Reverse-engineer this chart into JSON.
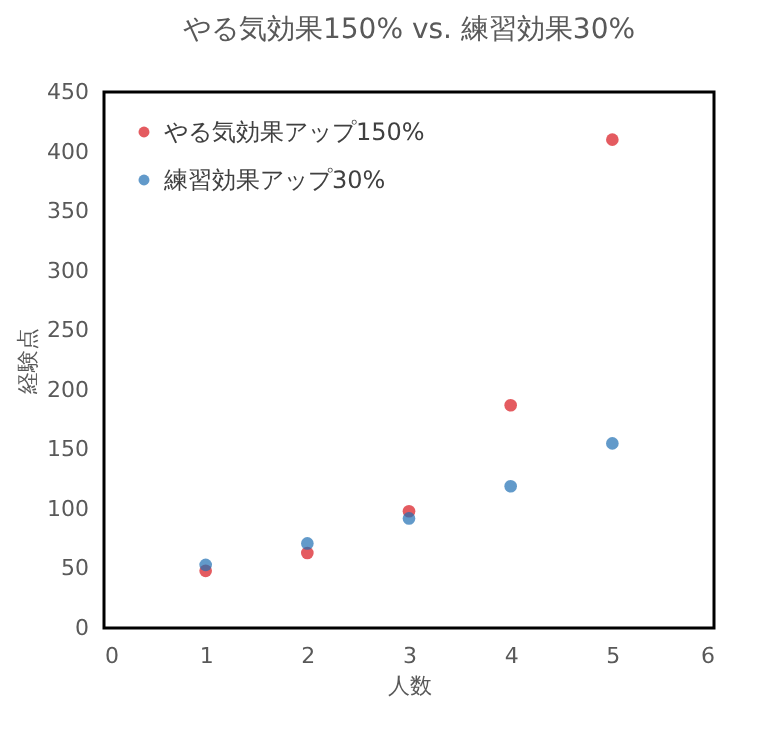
{
  "chart_data": {
    "type": "scatter",
    "title": "やる気効果150% vs. 練習効果30%",
    "xlabel": "人数",
    "ylabel": "経験点",
    "x": [
      1,
      2,
      3,
      4,
      5
    ],
    "series": [
      {
        "name": "やる気効果アップ150%",
        "color": "#d9161c",
        "values": [
          48,
          63,
          98,
          187,
          410
        ]
      },
      {
        "name": "練習効果アップ30%",
        "color": "#1f6fb4",
        "values": [
          53,
          71,
          92,
          119,
          155
        ]
      }
    ],
    "xlim": [
      0,
      6
    ],
    "xticks": [
      0,
      1,
      2,
      3,
      4,
      5,
      6
    ],
    "ylim": [
      0,
      450
    ],
    "yticks": [
      0,
      50,
      100,
      150,
      200,
      250,
      300,
      350,
      400,
      450
    ],
    "grid": false,
    "legend": "top left",
    "marker": "circle"
  }
}
